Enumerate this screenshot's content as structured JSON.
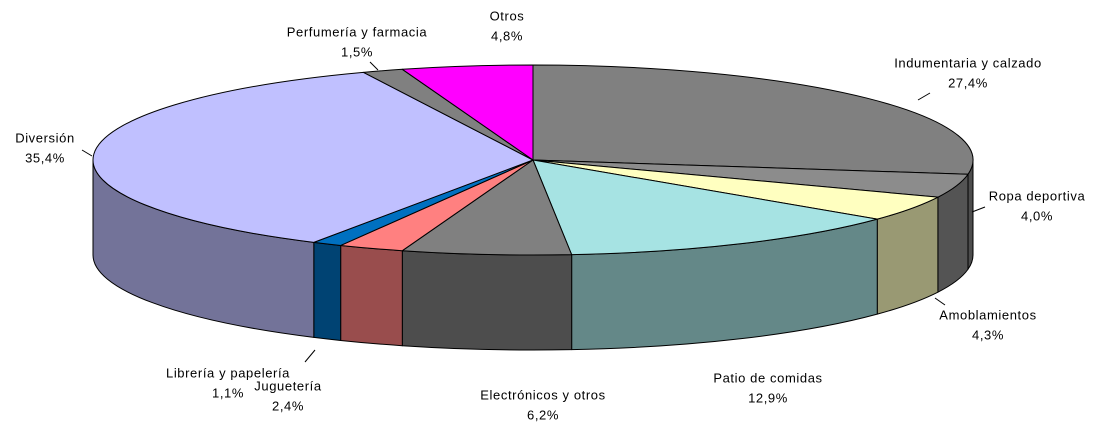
{
  "chart_data": {
    "type": "pie3d",
    "categories": [
      "Indumentaria y calzado",
      "Ropa deportiva",
      "Amoblamientos",
      "Patio de comidas",
      "Electrónicos y otros",
      "Juguetería",
      "Librería y papelería",
      "Diversión",
      "Perfumería y farmacia",
      "Otros"
    ],
    "values": [
      27.4,
      4.0,
      4.3,
      12.9,
      6.2,
      2.4,
      1.1,
      35.4,
      1.5,
      4.8
    ],
    "value_labels": [
      "27,4%",
      "4,0%",
      "4,3%",
      "12,9%",
      "6,2%",
      "2,4%",
      "1,1%",
      "35,4%",
      "1,5%",
      "4,8%"
    ],
    "colors": [
      "#808080",
      "#8c8c8c",
      "#ffffc0",
      "#a6e3e3",
      "#808080",
      "#ff8080",
      "#0070c0",
      "#c0c0ff",
      "#808080",
      "#ff00ff"
    ]
  }
}
